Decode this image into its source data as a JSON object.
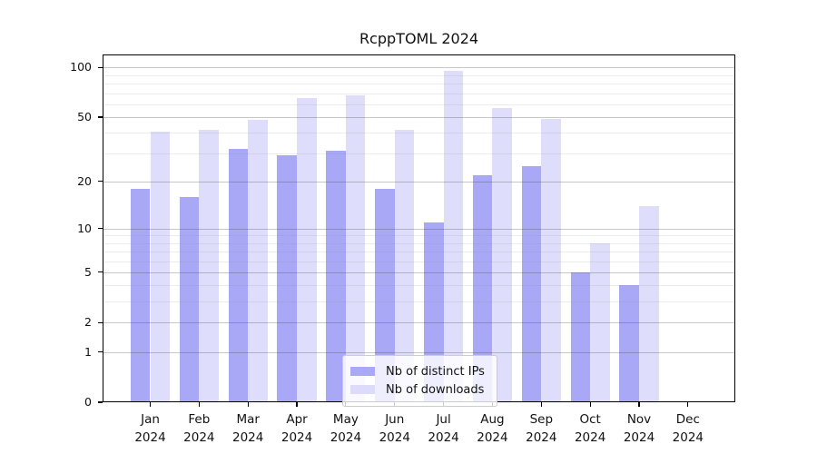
{
  "title": "RcppTOML 2024",
  "legend": {
    "items": [
      {
        "label": "Nb of distinct IPs",
        "color": "#a9a9f8"
      },
      {
        "label": "Nb of downloads",
        "color": "#dcdcfa"
      }
    ]
  },
  "chart_data": {
    "type": "bar",
    "title": "RcppTOML 2024",
    "categories": [
      "Jan 2024",
      "Feb 2024",
      "Mar 2024",
      "Apr 2024",
      "May 2024",
      "Jun 2024",
      "Jul 2024",
      "Aug 2024",
      "Sep 2024",
      "Oct 2024",
      "Nov 2024",
      "Dec 2024"
    ],
    "series": [
      {
        "name": "Nb of distinct IPs",
        "values": [
          18,
          16,
          32,
          29,
          31,
          18,
          11,
          22,
          25,
          5,
          4,
          0
        ],
        "color": "#a9a9f8"
      },
      {
        "name": "Nb of downloads",
        "values": [
          41,
          42,
          48,
          65,
          68,
          42,
          96,
          57,
          49,
          8,
          14,
          0
        ],
        "color": "#dcdcfa"
      }
    ],
    "yscale": "log1p",
    "ylim": [
      0,
      120
    ],
    "yticks": [
      0,
      1,
      2,
      5,
      10,
      20,
      50,
      100
    ],
    "minor_gridlines": [
      3,
      4,
      6,
      7,
      8,
      9,
      30,
      40,
      60,
      70,
      80,
      90
    ],
    "grid": true,
    "xlabel": "",
    "ylabel": "",
    "legend_position": "inside lower center"
  },
  "colors": {
    "background": "#ffffff",
    "bar_ips": "#a9a9f8",
    "bar_downloads": "#dcdcfa",
    "bar_base": "#5c5cf0",
    "major_grid": "rgba(70,70,70,0.30)",
    "minor_grid": "rgba(130,130,130,0.15)",
    "axis": "#000000",
    "text": "#111111",
    "legend_border": "#cccccc",
    "legend_bg": "rgba(255,255,255,0.8)"
  }
}
